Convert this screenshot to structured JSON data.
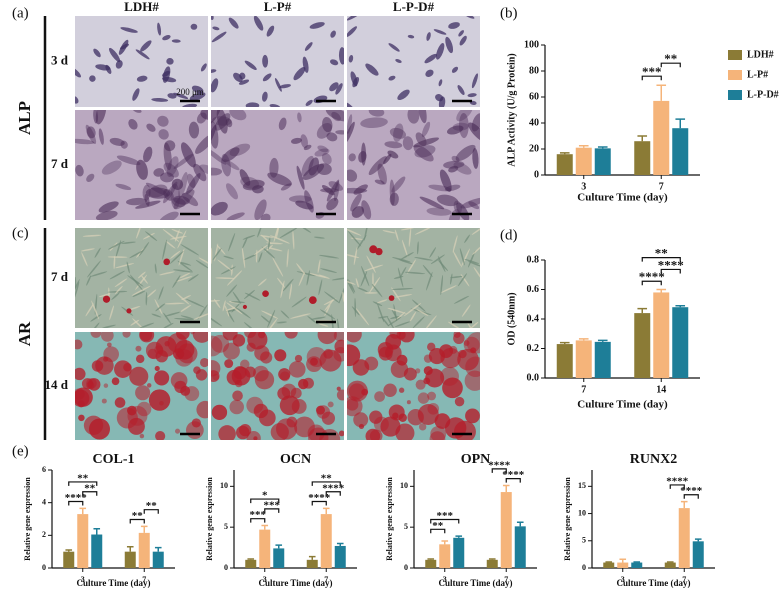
{
  "figure": {
    "panel_labels": [
      "(a)",
      "(b)",
      "(c)",
      "(d)",
      "(e)"
    ],
    "image_grid": {
      "columns": [
        "LDH#",
        "L-P#",
        "L-P-D#"
      ],
      "groups": [
        {
          "label": "ALP",
          "rows": [
            "3 d",
            "7 d"
          ]
        },
        {
          "label": "AR",
          "rows": [
            "7 d",
            "14 d"
          ]
        }
      ],
      "scale_bar": "200 μm"
    }
  },
  "chart_data": [
    {
      "type": "bar",
      "categories": [
        "3",
        "7"
      ],
      "series": [
        {
          "name": "LDH#",
          "color": "#8b7b36",
          "values": [
            16,
            26
          ],
          "errors": [
            1,
            4
          ]
        },
        {
          "name": "L-P#",
          "color": "#f5b47a",
          "values": [
            21,
            57
          ],
          "errors": [
            1.5,
            12
          ]
        },
        {
          "name": "L-P-D#",
          "color": "#1e7e98",
          "values": [
            20.5,
            36
          ],
          "errors": [
            1,
            7
          ]
        }
      ],
      "ylim": [
        0,
        100
      ],
      "yticks": [
        0,
        20,
        40,
        60,
        80,
        100
      ],
      "ylabel": "ALP Activity (U/g Protein)",
      "xlabel": "Culture Time (day)",
      "legend": "right",
      "annotations": [
        {
          "text": "***",
          "category": "7",
          "between": [
            "LDH#",
            "L-P#"
          ]
        },
        {
          "text": "**",
          "category": "7",
          "between": [
            "L-P#",
            "L-P-D#"
          ]
        }
      ]
    },
    {
      "type": "bar",
      "categories": [
        "7",
        "14"
      ],
      "series": [
        {
          "name": "LDH#",
          "color": "#8b7b36",
          "values": [
            0.23,
            0.44
          ],
          "errors": [
            0.01,
            0.03
          ]
        },
        {
          "name": "L-P#",
          "color": "#f5b47a",
          "values": [
            0.255,
            0.58
          ],
          "errors": [
            0.01,
            0.02
          ]
        },
        {
          "name": "L-P-D#",
          "color": "#1e7e98",
          "values": [
            0.245,
            0.48
          ],
          "errors": [
            0.01,
            0.01
          ]
        }
      ],
      "ylim": [
        0,
        0.8
      ],
      "yticks": [
        {
          "value": 0,
          "label": "0.0"
        },
        0.2,
        0.4,
        0.6,
        0.8
      ],
      "ylabel": "OD (540nm)",
      "xlabel": "Culture Time (day)",
      "annotations": [
        {
          "text": "****",
          "category": "14",
          "between": [
            "LDH#",
            "L-P#"
          ]
        },
        {
          "text": "****",
          "category": "14",
          "between": [
            "L-P#",
            "L-P-D#"
          ]
        },
        {
          "text": "**",
          "category": "14",
          "between": [
            "LDH#",
            "L-P-D#"
          ]
        }
      ]
    },
    {
      "type": "bar",
      "title": "COL-1",
      "categories": [
        "3",
        "7"
      ],
      "series": [
        {
          "name": "LDH#",
          "color": "#8b7b36",
          "values": [
            1.0,
            1.0
          ],
          "errors": [
            0.1,
            0.3
          ]
        },
        {
          "name": "L-P#",
          "color": "#f5b47a",
          "values": [
            3.3,
            2.15
          ],
          "errors": [
            0.35,
            0.4
          ]
        },
        {
          "name": "L-P-D#",
          "color": "#1e7e98",
          "values": [
            2.05,
            1.0
          ],
          "errors": [
            0.35,
            0.25
          ]
        }
      ],
      "ylim": [
        0,
        6
      ],
      "yticks": [
        0,
        2,
        4,
        6
      ],
      "ylabel": "Relative gene expression",
      "xlabel": "Culture Time (day)",
      "annotations": [
        {
          "text": "****",
          "category": "3",
          "between": [
            "LDH#",
            "L-P#"
          ]
        },
        {
          "text": "**",
          "category": "3",
          "between": [
            "L-P#",
            "L-P-D#"
          ]
        },
        {
          "text": "**",
          "category": "3",
          "between": [
            "LDH#",
            "L-P-D#"
          ]
        },
        {
          "text": "**",
          "category": "7",
          "between": [
            "LDH#",
            "L-P#"
          ]
        },
        {
          "text": "**",
          "category": "7",
          "between": [
            "L-P#",
            "L-P-D#"
          ]
        }
      ]
    },
    {
      "type": "bar",
      "title": "OCN",
      "categories": [
        "3",
        "7"
      ],
      "series": [
        {
          "name": "LDH#",
          "color": "#8b7b36",
          "values": [
            1.0,
            1.0
          ],
          "errors": [
            0.1,
            0.4
          ]
        },
        {
          "name": "L-P#",
          "color": "#f5b47a",
          "values": [
            4.7,
            6.6
          ],
          "errors": [
            0.5,
            0.7
          ]
        },
        {
          "name": "L-P-D#",
          "color": "#1e7e98",
          "values": [
            2.4,
            2.7
          ],
          "errors": [
            0.4,
            0.3
          ]
        }
      ],
      "ylim": [
        0,
        12
      ],
      "yticks": [
        0,
        5,
        10
      ],
      "ylabel": "Relative gene expression",
      "xlabel": "Culture Time (day)",
      "annotations": [
        {
          "text": "***",
          "category": "3",
          "between": [
            "LDH#",
            "L-P#"
          ]
        },
        {
          "text": "***",
          "category": "3",
          "between": [
            "L-P#",
            "L-P-D#"
          ]
        },
        {
          "text": "*",
          "category": "3",
          "between": [
            "LDH#",
            "L-P-D#"
          ]
        },
        {
          "text": "****",
          "category": "7",
          "between": [
            "LDH#",
            "L-P#"
          ]
        },
        {
          "text": "****",
          "category": "7",
          "between": [
            "L-P#",
            "L-P-D#"
          ]
        },
        {
          "text": "**",
          "category": "7",
          "between": [
            "LDH#",
            "L-P-D#"
          ]
        }
      ]
    },
    {
      "type": "bar",
      "title": "OPN",
      "categories": [
        "3",
        "7"
      ],
      "series": [
        {
          "name": "LDH#",
          "color": "#8b7b36",
          "values": [
            1.0,
            1.0
          ],
          "errors": [
            0.1,
            0.1
          ]
        },
        {
          "name": "L-P#",
          "color": "#f5b47a",
          "values": [
            2.9,
            9.3
          ],
          "errors": [
            0.4,
            0.8
          ]
        },
        {
          "name": "L-P-D#",
          "color": "#1e7e98",
          "values": [
            3.7,
            5.1
          ],
          "errors": [
            0.2,
            0.5
          ]
        }
      ],
      "ylim": [
        0,
        12
      ],
      "yticks": [
        0,
        5,
        10
      ],
      "ylabel": "Relative gene expression",
      "xlabel": "Culture Time (day)",
      "annotations": [
        {
          "text": "**",
          "category": "3",
          "between": [
            "LDH#",
            "L-P#"
          ]
        },
        {
          "text": "***",
          "category": "3",
          "between": [
            "LDH#",
            "L-P-D#"
          ]
        },
        {
          "text": "****",
          "category": "7",
          "between": [
            "L-P#",
            "L-P-D#"
          ]
        },
        {
          "text": "****",
          "category": "7",
          "between": [
            "LDH#",
            "L-P#"
          ]
        }
      ]
    },
    {
      "type": "bar",
      "title": "RUNX2",
      "categories": [
        "3",
        "7"
      ],
      "series": [
        {
          "name": "LDH#",
          "color": "#8b7b36",
          "values": [
            1.0,
            1.0
          ],
          "errors": [
            0.1,
            0.1
          ]
        },
        {
          "name": "L-P#",
          "color": "#f5b47a",
          "values": [
            1.0,
            11.0
          ],
          "errors": [
            0.6,
            1.2
          ]
        },
        {
          "name": "L-P-D#",
          "color": "#1e7e98",
          "values": [
            1.0,
            4.9
          ],
          "errors": [
            0.1,
            0.4
          ]
        }
      ],
      "ylim": [
        0,
        18
      ],
      "yticks": [
        0,
        5,
        10,
        15
      ],
      "ylabel": "Relative gene expression",
      "xlabel": "Culture Time (day)",
      "annotations": [
        {
          "text": "****",
          "category": "7",
          "between": [
            "L-P#",
            "L-P-D#"
          ]
        },
        {
          "text": "****",
          "category": "7",
          "between": [
            "LDH#",
            "L-P#"
          ]
        }
      ]
    }
  ]
}
